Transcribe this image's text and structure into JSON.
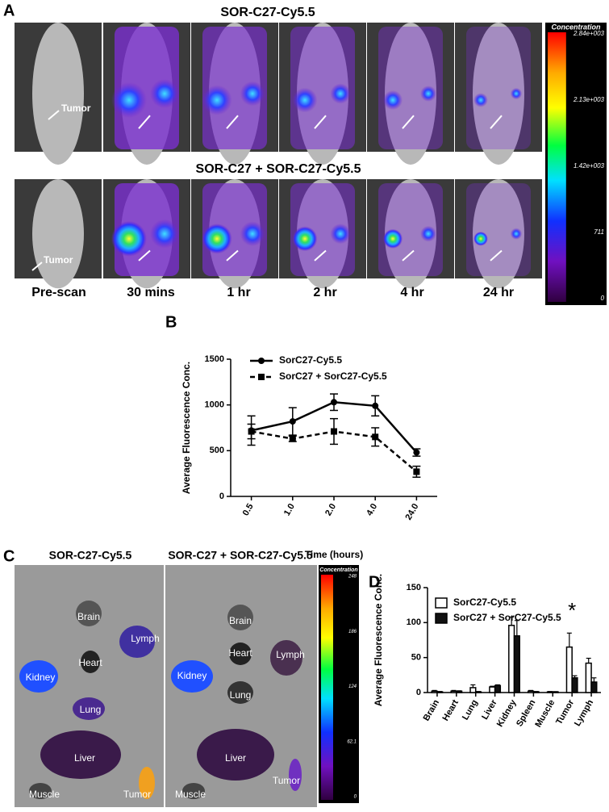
{
  "panel_a": {
    "letter": "A",
    "title_top": "SOR-C27-Cy5.5",
    "title_bottom": "SOR-C27 + SOR-C27-Cy5.5",
    "tumor_labels": [
      "Tumor",
      "Tumor"
    ],
    "timepoints": [
      "Pre-scan",
      "30 mins",
      "1 hr",
      "2 hr",
      "4 hr",
      "24 hr"
    ],
    "colorbar": {
      "title": "Concentration",
      "labels": [
        "2.84e+003",
        "2.13e+003",
        "1.42e+003",
        "711",
        "0"
      ]
    }
  },
  "panel_c": {
    "letter": "C",
    "title_left": "SOR-C27-Cy5.5",
    "title_right": "SOR-C27 + SOR-C27-Cy5.5",
    "organs_left": [
      "Brain",
      "Lymph",
      "Kidney",
      "Heart",
      "Lung",
      "Liver",
      "Muscle",
      "Tumor"
    ],
    "organs_right": [
      "Brain",
      "Heart",
      "Lymph",
      "Kidney",
      "Lung",
      "Liver",
      "Muscle",
      "Tumor"
    ],
    "colorbar": {
      "title": "Concentration",
      "labels": [
        "248",
        "186",
        "124",
        "62.1",
        "0"
      ]
    }
  },
  "chart_data": [
    {
      "type": "line",
      "letter": "B",
      "ylabel": "Average  Fluorescence Conc.",
      "xlabel": "Time (hours)",
      "categories": [
        "0.5",
        "1.0",
        "2.0",
        "4.0",
        "24.0"
      ],
      "series": [
        {
          "name": "SorC27-Cy5.5",
          "color": "#000000",
          "style": "solid",
          "marker": "circle",
          "values": [
            720,
            820,
            1030,
            990,
            480
          ],
          "errors": [
            160,
            150,
            90,
            110,
            40
          ]
        },
        {
          "name": "SorC27 + SorC27-Cy5.5",
          "color": "#000000",
          "style": "dashed",
          "marker": "square",
          "values": [
            710,
            630,
            710,
            650,
            270
          ],
          "errors": [
            80,
            30,
            140,
            100,
            60
          ]
        }
      ],
      "ylim": [
        0,
        1500
      ],
      "yticks": [
        0,
        500,
        1000,
        1500
      ]
    },
    {
      "type": "bar",
      "letter": "D",
      "ylabel": "Average  Fluorescence Conc.",
      "categories": [
        "Brain",
        "Heart",
        "Lung",
        "Liver",
        "Kidney",
        "Spleen",
        "Muscle",
        "Tumor",
        "Lymph"
      ],
      "series": [
        {
          "name": "SorC27-Cy5.5",
          "color": "#ffffff",
          "edge": "#000000",
          "values": [
            2,
            2,
            7,
            8,
            96,
            2,
            1,
            65,
            42
          ],
          "errors": [
            1,
            1,
            4,
            1,
            12,
            1,
            0.5,
            20,
            7
          ]
        },
        {
          "name": "SorC27 + SorC27-Cy5.5",
          "color": "#111111",
          "edge": "#000000",
          "values": [
            1,
            2,
            1,
            10,
            81,
            1,
            1,
            21,
            15
          ],
          "errors": [
            0.5,
            0.5,
            0.5,
            1,
            22,
            0.5,
            0.3,
            3,
            6
          ]
        }
      ],
      "ylim": [
        0,
        150
      ],
      "yticks": [
        0,
        50,
        100,
        150
      ],
      "annotations": [
        {
          "text": "*",
          "x": "Tumor"
        }
      ]
    }
  ]
}
